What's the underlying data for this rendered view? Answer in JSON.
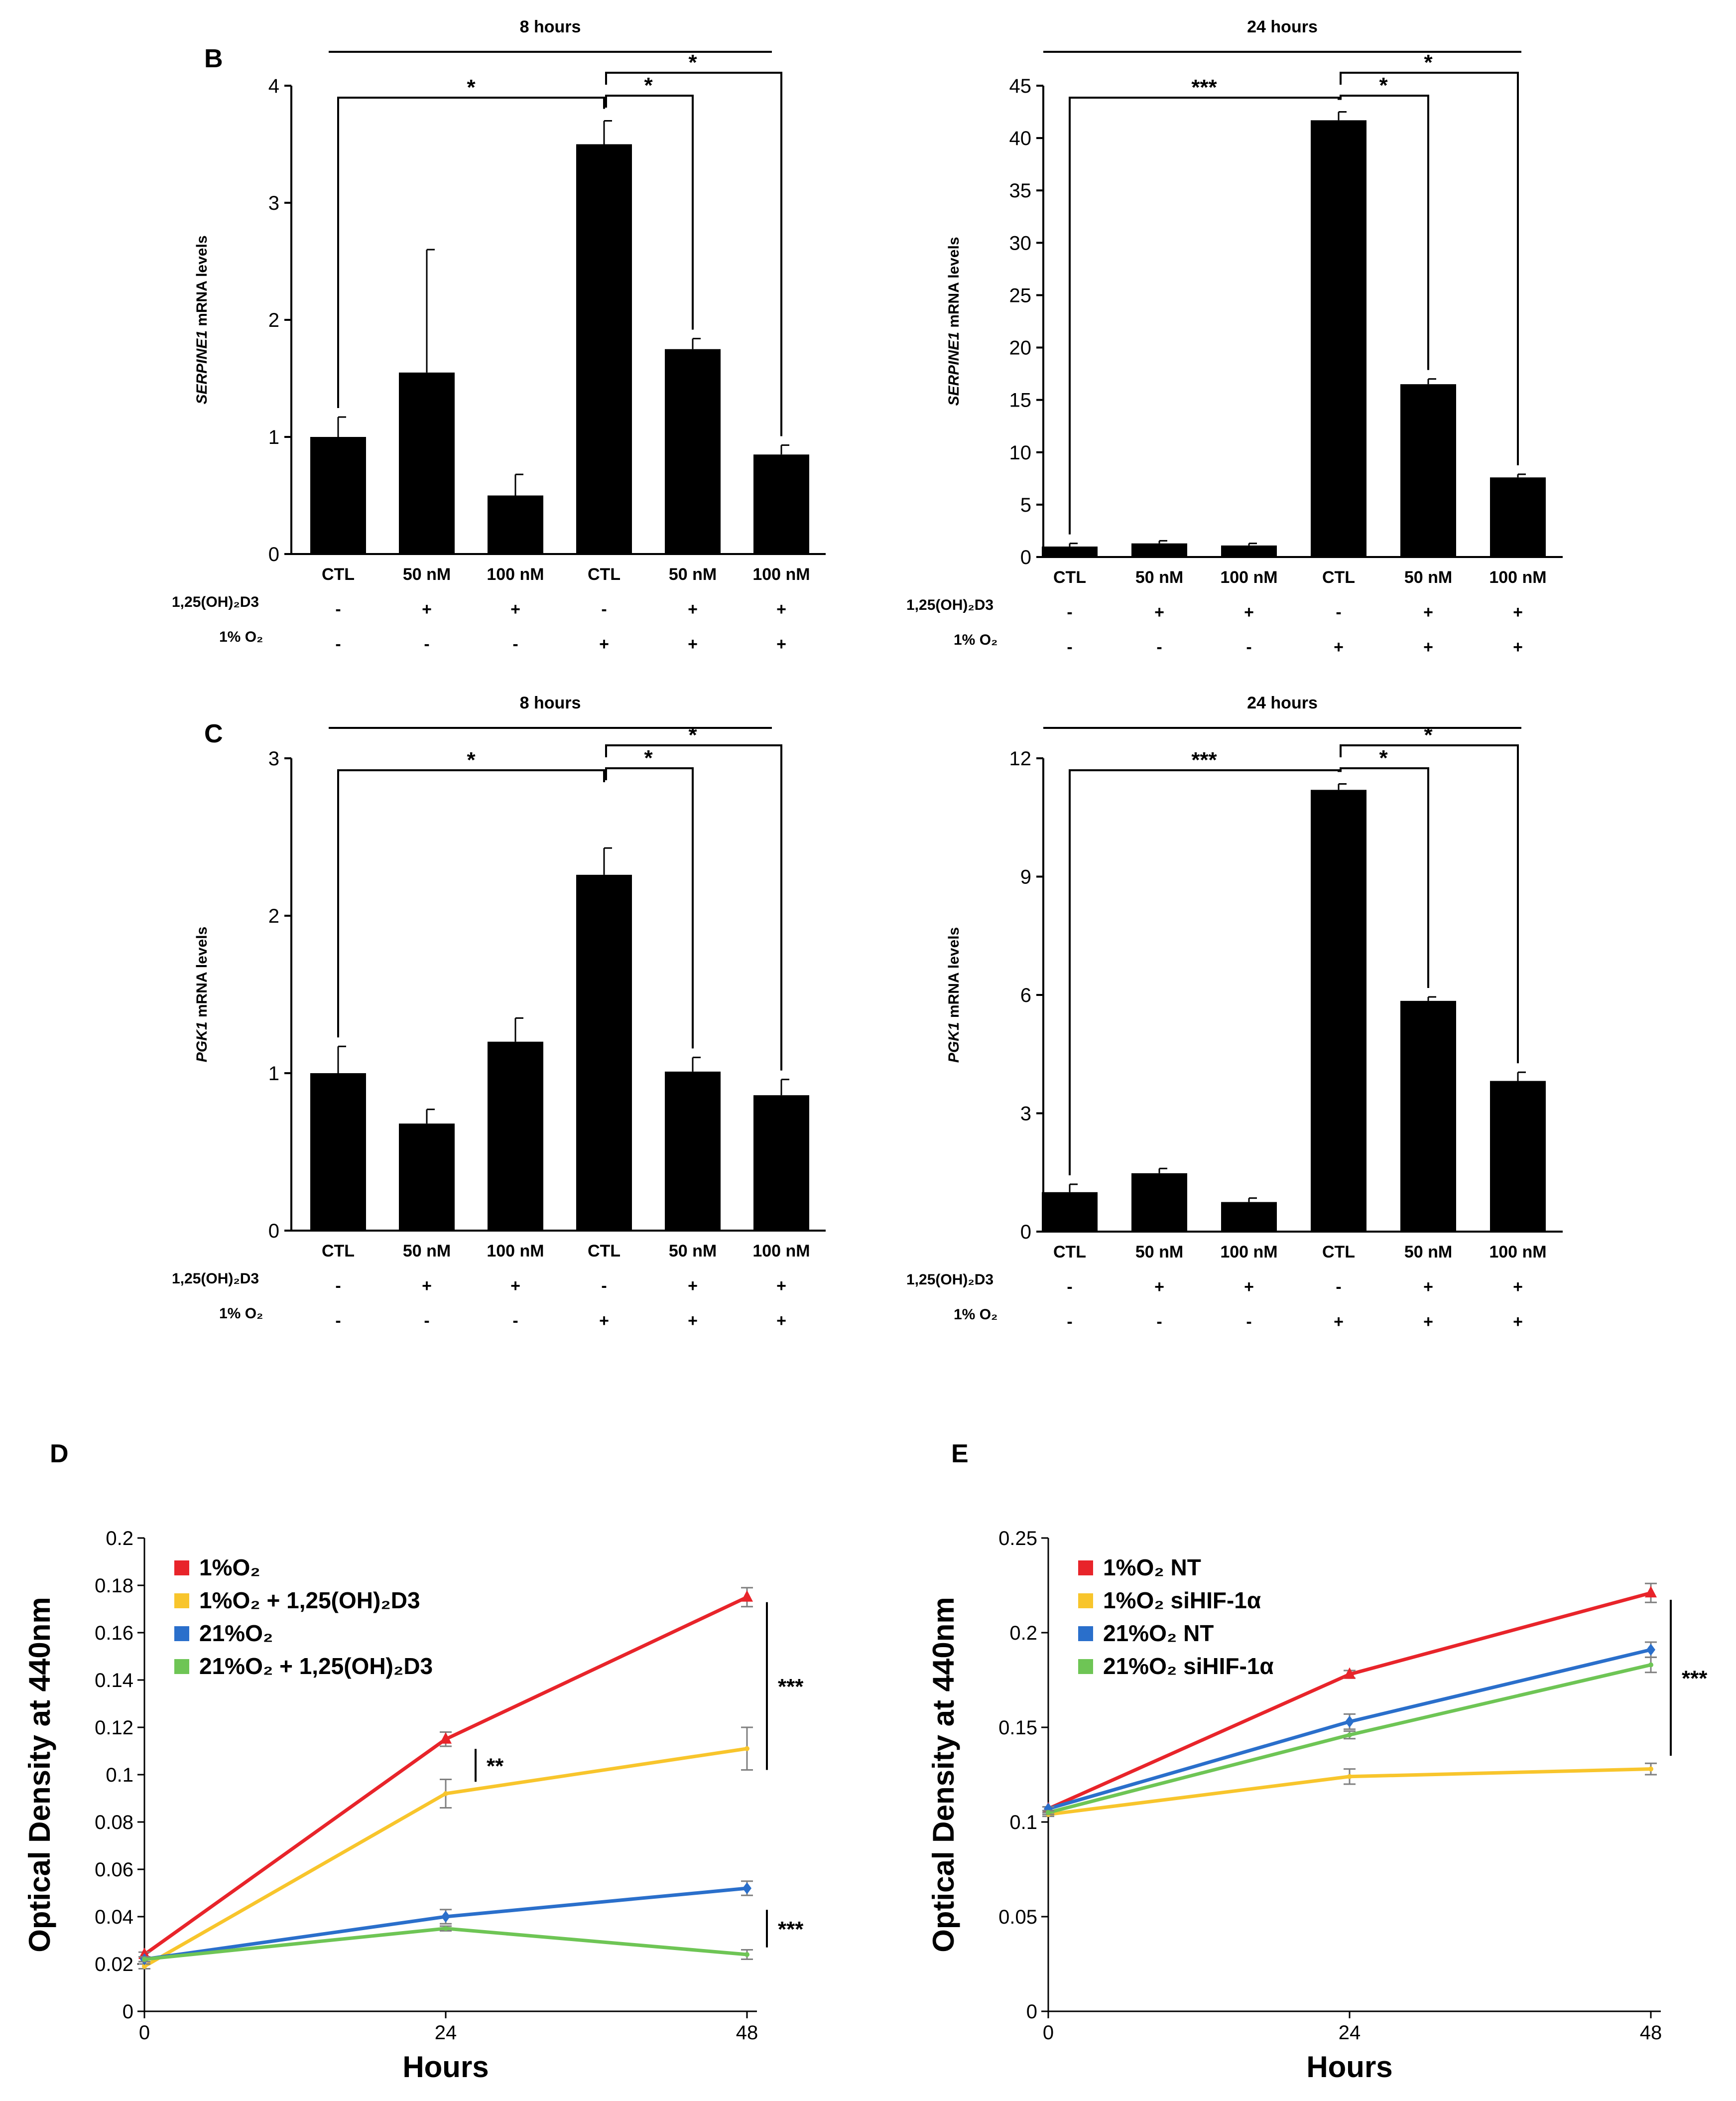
{
  "figure": {
    "panels": [
      "B",
      "C",
      "D",
      "E"
    ]
  },
  "row_labels": {
    "vitd": "1,25(OH)₂D3",
    "vitd_c": "1,25(OH)₂D3",
    "o2": "1% O₂"
  },
  "colors": {
    "bar": "#000000",
    "red": "#e8242a",
    "yellow": "#f8c52c",
    "blue": "#2a6fcb",
    "green": "#6ec555"
  },
  "chart_data": [
    {
      "id": "B-8h",
      "panel": "B",
      "type": "bar",
      "title": "8 hours",
      "ylabel_italic": "SERPINE1",
      "ylabel_rest": " mRNA levels",
      "ylim": [
        0,
        4
      ],
      "yticks": [
        0,
        1,
        2,
        3,
        4
      ],
      "categories": [
        "CTL",
        "50 nM",
        "100 nM",
        "CTL",
        "50 nM",
        "100 nM"
      ],
      "values": [
        1.0,
        1.55,
        0.5,
        3.5,
        1.75,
        0.85
      ],
      "errors": [
        0.17,
        1.05,
        0.18,
        0.2,
        0.09,
        0.08
      ],
      "vitd_signs": [
        "-",
        "+",
        "+",
        "-",
        "+",
        "+"
      ],
      "o2_signs": [
        "-",
        "-",
        "-",
        "+",
        "+",
        "+"
      ],
      "significance": [
        {
          "from": 0,
          "to": 3,
          "label": "*"
        },
        {
          "from": 3,
          "to": 4,
          "label": "*"
        },
        {
          "from": 3,
          "to": 5,
          "label": "*"
        }
      ]
    },
    {
      "id": "B-24h",
      "panel": "B",
      "type": "bar",
      "title": "24 hours",
      "ylabel_italic": "SERPINE1",
      "ylabel_rest": " mRNA levels",
      "ylim": [
        0,
        45
      ],
      "yticks": [
        0,
        5,
        10,
        15,
        20,
        25,
        30,
        35,
        40,
        45
      ],
      "categories": [
        "CTL",
        "50 nM",
        "100 nM",
        "CTL",
        "50 nM",
        "100 nM"
      ],
      "values": [
        1.0,
        1.3,
        1.1,
        41.7,
        16.5,
        7.6
      ],
      "errors": [
        0.3,
        0.25,
        0.2,
        0.8,
        0.5,
        0.3
      ],
      "vitd_signs": [
        "-",
        "+",
        "+",
        "-",
        "+",
        "+"
      ],
      "o2_signs": [
        "-",
        "-",
        "-",
        "+",
        "+",
        "+"
      ],
      "significance": [
        {
          "from": 0,
          "to": 3,
          "label": "***"
        },
        {
          "from": 3,
          "to": 4,
          "label": "*"
        },
        {
          "from": 3,
          "to": 5,
          "label": "*"
        }
      ]
    },
    {
      "id": "C-8h",
      "panel": "C",
      "type": "bar",
      "title": "8 hours",
      "ylabel_italic": "PGK1",
      "ylabel_rest": " mRNA levels",
      "ylim": [
        0,
        3
      ],
      "yticks": [
        0,
        1,
        2,
        3
      ],
      "categories": [
        "CTL",
        "50 nM",
        "100 nM",
        "CTL",
        "50 nM",
        "100 nM"
      ],
      "values": [
        1.0,
        0.68,
        1.2,
        2.26,
        1.01,
        0.86
      ],
      "errors": [
        0.17,
        0.09,
        0.15,
        0.17,
        0.09,
        0.1
      ],
      "vitd_signs": [
        "-",
        "+",
        "+",
        "-",
        "+",
        "+"
      ],
      "o2_signs": [
        "-",
        "-",
        "-",
        "+",
        "+",
        "+"
      ],
      "significance": [
        {
          "from": 0,
          "to": 3,
          "label": "*"
        },
        {
          "from": 3,
          "to": 4,
          "label": "*"
        },
        {
          "from": 3,
          "to": 5,
          "label": "*"
        }
      ]
    },
    {
      "id": "C-24h",
      "panel": "C",
      "type": "bar",
      "title": "24 hours",
      "ylabel_italic": "PGK1",
      "ylabel_rest": " mRNA levels",
      "ylim": [
        0,
        12
      ],
      "yticks": [
        0,
        3,
        6,
        9,
        12
      ],
      "categories": [
        "CTL",
        "50 nM",
        "100 nM",
        "CTL",
        "50 nM",
        "100 nM"
      ],
      "values": [
        1.0,
        1.48,
        0.75,
        11.2,
        5.85,
        3.82
      ],
      "errors": [
        0.2,
        0.12,
        0.1,
        0.15,
        0.1,
        0.22
      ],
      "vitd_signs": [
        "-",
        "+",
        "+",
        "-",
        "+",
        "+"
      ],
      "o2_signs": [
        "-",
        "-",
        "-",
        "+",
        "+",
        "+"
      ],
      "significance": [
        {
          "from": 0,
          "to": 3,
          "label": "***"
        },
        {
          "from": 3,
          "to": 4,
          "label": "*"
        },
        {
          "from": 3,
          "to": 5,
          "label": "*"
        }
      ]
    },
    {
      "id": "D",
      "panel": "D",
      "type": "line",
      "xlabel": "Hours",
      "ylabel": "Optical Density at 440nm",
      "x": [
        0,
        24,
        48
      ],
      "xticks": [
        0,
        24,
        48
      ],
      "ylim": [
        0,
        0.2
      ],
      "yticks": [
        0,
        0.02,
        0.04,
        0.06,
        0.08,
        0.1,
        0.12,
        0.14,
        0.16,
        0.18,
        0.2
      ],
      "ytick_labels": [
        "0",
        "0.02",
        "0.04",
        "0.06",
        "0.08",
        "0.1",
        "0.12",
        "0.14",
        "0.16",
        "0.18",
        "0.2"
      ],
      "legend": {
        "position": "top-left"
      },
      "series": [
        {
          "name": "1%O₂",
          "color": "#e8242a",
          "values": [
            0.024,
            0.115,
            0.175
          ],
          "errors": [
            0.001,
            0.003,
            0.004
          ],
          "marker": "triangle"
        },
        {
          "name": "1%O₂ + 1,25(OH)₂D3",
          "color": "#f8c52c",
          "values": [
            0.019,
            0.092,
            0.111
          ],
          "errors": [
            0.001,
            0.006,
            0.009
          ],
          "marker": "none"
        },
        {
          "name": "21%O₂",
          "color": "#2a6fcb",
          "values": [
            0.022,
            0.04,
            0.052
          ],
          "errors": [
            0.001,
            0.003,
            0.003
          ],
          "marker": "diamond"
        },
        {
          "name": "21%O₂ + 1,25(OH)₂D3",
          "color": "#6ec555",
          "values": [
            0.022,
            0.035,
            0.024
          ],
          "errors": [
            0.001,
            0.001,
            0.002
          ],
          "marker": "none"
        }
      ],
      "significance": [
        {
          "label": "***",
          "x": 48,
          "y1": 0.175,
          "y2": 0.102
        },
        {
          "label": "**",
          "x": 24,
          "y1": 0.113,
          "y2": 0.097
        },
        {
          "label": "***",
          "x": 48,
          "y1": 0.045,
          "y2": 0.027
        }
      ]
    },
    {
      "id": "E",
      "panel": "E",
      "type": "line",
      "xlabel": "Hours",
      "ylabel": "Optical Density at 440nm",
      "x": [
        0,
        24,
        48
      ],
      "xticks": [
        0,
        24,
        48
      ],
      "ylim": [
        0,
        0.25
      ],
      "yticks": [
        0,
        0.05,
        0.1,
        0.15,
        0.2,
        0.25
      ],
      "ytick_labels": [
        "0",
        "0.05",
        "0.1",
        "0.15",
        "0.2",
        "0.25"
      ],
      "legend": {
        "position": "top-left"
      },
      "series": [
        {
          "name": "1%O₂ NT",
          "color": "#e8242a",
          "values": [
            0.107,
            0.178,
            0.221
          ],
          "errors": [
            0.001,
            0.002,
            0.005
          ],
          "marker": "triangle"
        },
        {
          "name": "1%O₂ siHIF-1α",
          "color": "#f8c52c",
          "values": [
            0.104,
            0.124,
            0.128
          ],
          "errors": [
            0.001,
            0.004,
            0.003
          ],
          "marker": "none"
        },
        {
          "name": "21%O₂ NT",
          "color": "#2a6fcb",
          "values": [
            0.107,
            0.153,
            0.191
          ],
          "errors": [
            0.001,
            0.004,
            0.004
          ],
          "marker": "diamond"
        },
        {
          "name": "21%O₂ siHIF-1α",
          "color": "#6ec555",
          "values": [
            0.105,
            0.146,
            0.183
          ],
          "errors": [
            0.001,
            0.002,
            0.004
          ],
          "marker": "none"
        }
      ],
      "significance": [
        {
          "label": "***",
          "x": 48,
          "y1": 0.22,
          "y2": 0.135
        }
      ]
    }
  ]
}
